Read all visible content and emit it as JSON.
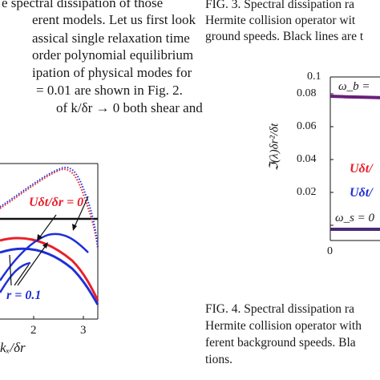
{
  "body_text": [
    "e spectral dissipation of those",
    "erent models. Let us first look",
    "assical single relaxation time",
    "order polynomial equilibrium",
    "ipation of physical modes for",
    "= 0.01 are shown in Fig. 2.",
    "of k/δr → 0 both shear and"
  ],
  "fig3_caption": [
    "FIG. 3.  Spectral dissipation ra",
    "Hermite collision operator wit",
    "ground speeds. Black lines are t"
  ],
  "fig4_caption": [
    "FIG. 4.  Spectral dissipation ra",
    "Hermite collision operator with",
    "ferent background speeds.  Bla",
    "tions."
  ],
  "left_plot": {
    "label_u0": "Uδt/δr = 0",
    "label_u01": "r = 0.1",
    "xtick_labels": [
      "2",
      "3"
    ],
    "xlabel": "kₓ/δr",
    "colors": {
      "red": "#e8202a",
      "blue": "#1f2fd8",
      "black": "#111111"
    }
  },
  "right_plot": {
    "ylabel": "ℑ(λ)δr²/δt",
    "ytick_labels": [
      "0.1",
      "0.08",
      "0.06",
      "0.04",
      "0.02"
    ],
    "xtick_label": "0",
    "label_omega_b": "ω_b =",
    "label_red": "Uδt/",
    "label_blue": "Uδt/",
    "label_omega_s": "ω_s = 0",
    "colors": {
      "red": "#e8202a",
      "blue": "#1f2fd8",
      "black": "#111111"
    }
  },
  "chart_data": [
    {
      "type": "line",
      "title": "",
      "xlabel": "kₓ/δr",
      "ylabel": "",
      "xticks": [
        2,
        3
      ],
      "series": [
        {
          "name": "Uδt/δr = 0",
          "color": "#e8202a",
          "x": [
            0.0,
            0.5,
            1.0,
            1.5,
            2.0,
            2.3,
            2.6,
            2.9,
            3.14
          ],
          "y": [
            0.3,
            0.55,
            0.8,
            1.0,
            1.15,
            1.22,
            1.25,
            1.05,
            0.55
          ]
        },
        {
          "name": "Uδt/δr = 0.1",
          "color": "#1f2fd8",
          "x": [
            0.0,
            0.5,
            1.0,
            1.5,
            2.0,
            2.3,
            2.6,
            2.9,
            3.14
          ],
          "y": [
            0.35,
            0.6,
            0.85,
            1.02,
            1.18,
            1.24,
            1.26,
            1.1,
            0.6
          ]
        }
      ]
    },
    {
      "type": "line",
      "title": "",
      "xlabel": "",
      "ylabel": "ℑ(λ)δr²/δt",
      "ylim": [
        0,
        0.1
      ],
      "yticks": [
        0.02,
        0.04,
        0.06,
        0.08,
        0.1
      ],
      "series": [
        {
          "name": "ω_b",
          "color": "#7a1f6e",
          "x": [
            0,
            1
          ],
          "y": [
            0.088,
            0.087
          ]
        },
        {
          "name": "ω_s = 0",
          "color": "#5a2a7a",
          "x": [
            0,
            1
          ],
          "y": [
            0.0095,
            0.0095
          ]
        }
      ]
    }
  ]
}
